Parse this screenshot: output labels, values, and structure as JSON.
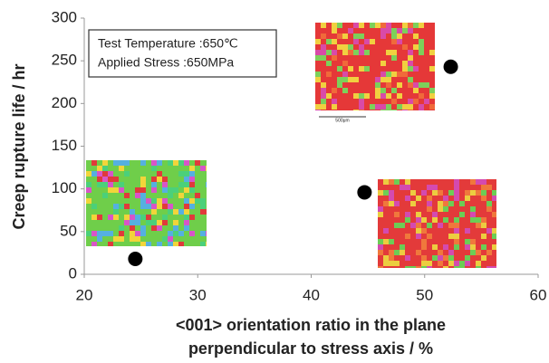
{
  "chart_data": {
    "type": "scatter",
    "ylabel": "Creep rupture life / hr",
    "xlabel": [
      "<001> orientation ratio in the plane",
      "perpendicular to stress axis / %"
    ],
    "annotation": [
      "Test Temperature :650℃",
      "Applied Stress     :650MPa"
    ],
    "scale_bar_label": "500μm",
    "x": [
      24.5,
      44.7,
      52.3
    ],
    "values": [
      18,
      96,
      243
    ],
    "color": "#000000",
    "xlim": [
      20,
      60
    ],
    "xticks": [
      20,
      30,
      40,
      50,
      60
    ],
    "ylim": [
      0,
      300
    ],
    "yticks": [
      0,
      50,
      100,
      150,
      200,
      250,
      300
    ],
    "grid": false
  }
}
